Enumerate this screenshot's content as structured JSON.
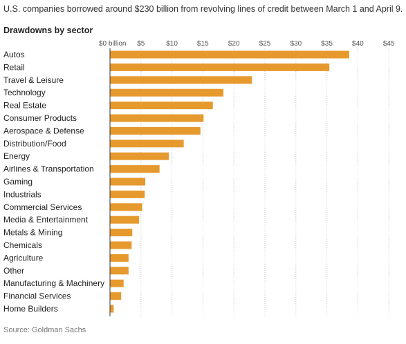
{
  "subtitle": "U.S. companies borrowed around $230 billion from revolving lines of credit between March 1 and April 9.",
  "source": "Source: Goldman Sachs",
  "colors": {
    "bar": "#E69A2E",
    "grid": "#c8c8c8",
    "axis": "#333333"
  },
  "chart_data": {
    "type": "bar",
    "orientation": "horizontal",
    "title": "Drawdowns by sector",
    "xlabel": "",
    "ylabel": "",
    "unit": "billion USD",
    "xlim": [
      0,
      45
    ],
    "grid": true,
    "x_ticks": [
      0,
      5,
      10,
      15,
      20,
      25,
      30,
      35,
      40,
      45
    ],
    "x_tick_labels": [
      "$0 billion",
      "$5",
      "$10",
      "$15",
      "$20",
      "$25",
      "$30",
      "$35",
      "$40",
      "$45"
    ],
    "categories": [
      "Autos",
      "Retail",
      "Travel & Leisure",
      "Technology",
      "Real Estate",
      "Consumer Products",
      "Aerospace & Defense",
      "Distribution/Food",
      "Energy",
      "Airlines & Transportation",
      "Gaming",
      "Industrials",
      "Commercial Services",
      "Media & Entertainment",
      "Metals & Mining",
      "Chemicals",
      "Agriculture",
      "Other",
      "Manufacturing & Machinery",
      "Financial Services",
      "Home Builders"
    ],
    "values": [
      38.6,
      35.4,
      22.9,
      18.3,
      16.6,
      15.1,
      14.6,
      11.9,
      9.5,
      8.0,
      5.7,
      5.6,
      5.2,
      4.7,
      3.6,
      3.5,
      3.0,
      3.0,
      2.2,
      1.8,
      0.6
    ]
  }
}
